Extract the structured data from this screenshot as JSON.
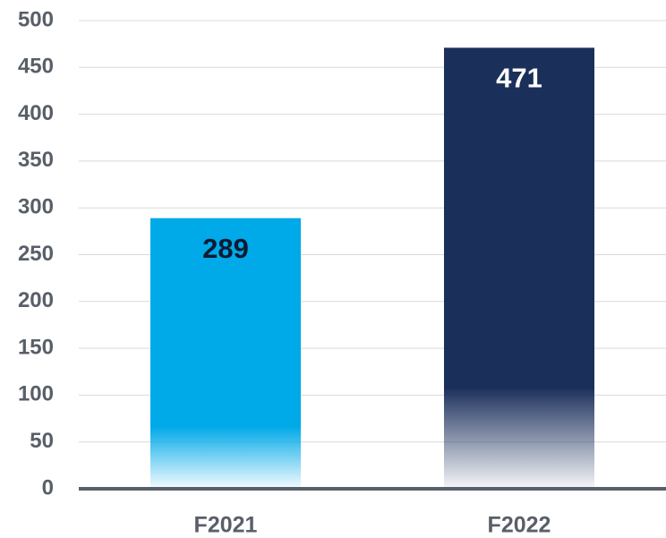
{
  "chart_data": {
    "type": "bar",
    "categories": [
      "F2021",
      "F2022"
    ],
    "values": [
      289,
      471
    ],
    "colors": [
      "#00a9e8",
      "#1b2f5b"
    ],
    "label_colors": [
      "#0d1b33",
      "#ffffff"
    ],
    "ylim": [
      0,
      500
    ],
    "yticks": [
      0,
      50,
      100,
      150,
      200,
      250,
      300,
      350,
      400,
      450,
      500
    ],
    "grid": true
  }
}
